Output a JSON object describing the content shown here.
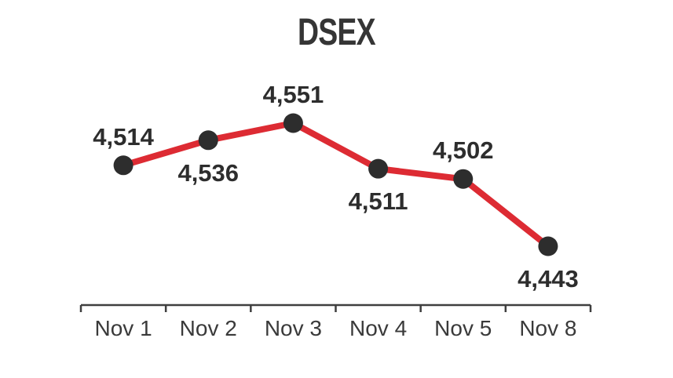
{
  "chart_data": {
    "type": "line",
    "title": "DSEX",
    "categories": [
      "Nov 1",
      "Nov 2",
      "Nov 3",
      "Nov 4",
      "Nov 5",
      "Nov 8"
    ],
    "values": [
      4514,
      4536,
      4551,
      4511,
      4502,
      4443
    ],
    "point_labels": [
      "4,514",
      "4,536",
      "4,551",
      "4,511",
      "4,502",
      "4,443"
    ],
    "label_positions": [
      "above",
      "below",
      "above",
      "below",
      "above",
      "below"
    ],
    "xlabel": "",
    "ylabel": "",
    "ylim": [
      4443,
      4551
    ],
    "grid": false,
    "legend": "none",
    "colors": {
      "line": "#dd2b33",
      "marker": "#2d2d2d",
      "value_label": "#2d2d2d",
      "axis": "#3f3f3f",
      "axis_label": "#3a3a3a",
      "title": "#353535",
      "background": "#ffffff"
    }
  }
}
